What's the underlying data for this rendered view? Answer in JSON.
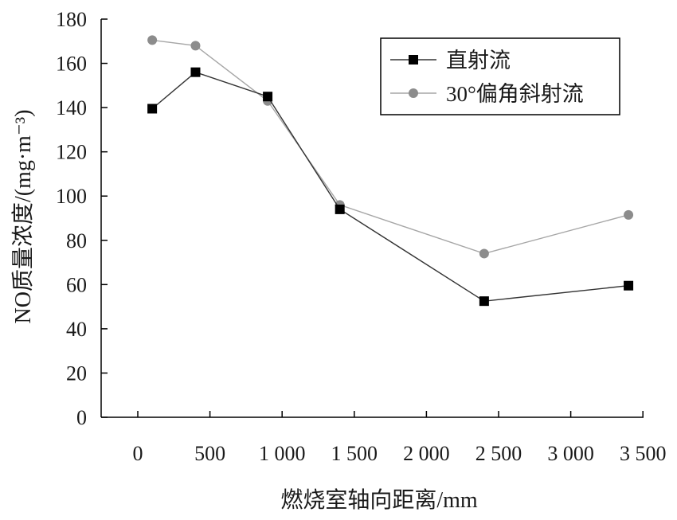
{
  "chart_data": {
    "type": "line",
    "x_tick_labels": [
      "0",
      "500",
      "1 000",
      "1 500",
      "2 000",
      "2 500",
      "3 000",
      "3 500"
    ],
    "y_tick_labels": [
      "0",
      "20",
      "40",
      "60",
      "80",
      "100",
      "120",
      "140",
      "160",
      "180"
    ],
    "xlabel": "燃烧室轴向距离/mm",
    "ylabel": "NO质量浓度/(mg·m⁻³)",
    "ylim": [
      0,
      180
    ],
    "legend_position": "top-right",
    "grid": false,
    "series": [
      {
        "name": "直射流",
        "marker": "square",
        "color": "#000000",
        "line_color": "#333333",
        "x": [
          100,
          400,
          900,
          1400,
          2400,
          3400
        ],
        "y": [
          139.5,
          156,
          145,
          94,
          52.5,
          59.5
        ]
      },
      {
        "name": "30°偏角斜射流",
        "marker": "circle",
        "color": "#8c8c8c",
        "line_color": "#a6a6a6",
        "x": [
          100,
          400,
          900,
          1400,
          2400,
          3400
        ],
        "y": [
          170.5,
          168,
          143,
          96,
          74,
          91.5
        ]
      }
    ]
  }
}
